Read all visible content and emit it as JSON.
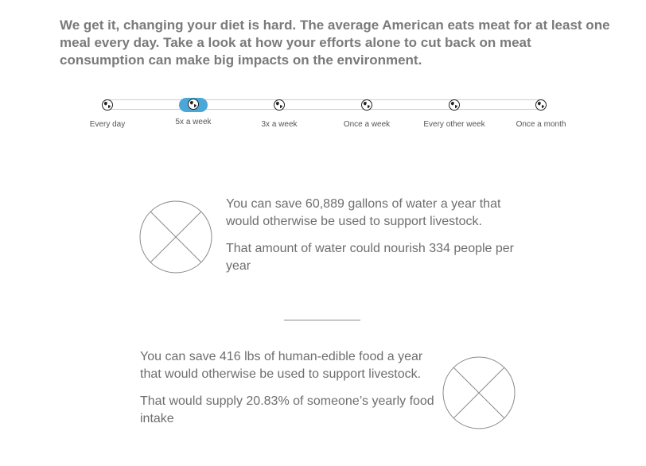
{
  "intro": {
    "text": "We get it, changing your diet is hard. The average American eats meat for at least one meal every day. Take a look at how your efforts alone to cut back on meat consumption can make big impacts on the environment."
  },
  "frequency": {
    "selected_index": 1,
    "icon": "globe-icon",
    "options": [
      {
        "label": "Every day"
      },
      {
        "label": "5x a week"
      },
      {
        "label": "3x a week"
      },
      {
        "label": "Once a week"
      },
      {
        "label": "Every other week"
      },
      {
        "label": "Once a month"
      }
    ]
  },
  "water": {
    "line1": "You can save 60,889 gallons of water a year that would otherwise be used to support livestock.",
    "line2": "That amount of water could nourish 334 people per year"
  },
  "food": {
    "line1": "You can save 416 lbs of human-edible food a year that would otherwise be used to support livestock.",
    "line2": "That would supply 20.83% of someone’s yearly food intake"
  },
  "colors": {
    "accent": "#4aa8d8",
    "text": "#6e6e6e"
  }
}
